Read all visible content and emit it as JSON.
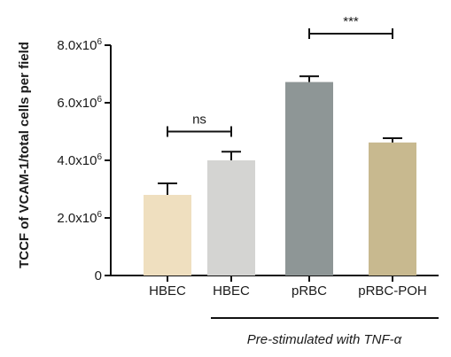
{
  "chart_data": {
    "type": "bar",
    "categories": [
      "HBEC",
      "HBEC",
      "pRBC",
      "pRBC-POH"
    ],
    "values": [
      2800000,
      4000000,
      6720000,
      4620000
    ],
    "errors": [
      400000,
      300000,
      200000,
      150000
    ],
    "colors": [
      "#efdfbf",
      "#d4d4d2",
      "#8e9696",
      "#c8b98f"
    ],
    "ylabel": "TCCF of VCAM-1/total cells per field",
    "ylim": [
      0,
      8000000
    ],
    "yticks": [
      {
        "value": 0,
        "label": "0"
      },
      {
        "value": 2000000,
        "label": "2.0x10",
        "exp": "6"
      },
      {
        "value": 4000000,
        "label": "4.0x10",
        "exp": "6"
      },
      {
        "value": 6000000,
        "label": "6.0x10",
        "exp": "6"
      },
      {
        "value": 8000000,
        "label": "8.0x10",
        "exp": "6"
      }
    ],
    "significance": [
      {
        "from": 0,
        "to": 1,
        "label": "ns",
        "level": 5000000
      },
      {
        "from": 2,
        "to": 3,
        "label": "***",
        "level": 8400000
      }
    ],
    "group_annotation": {
      "text_main": "Pre-stimulated with TNF-",
      "text_greek": "α",
      "span": [
        1,
        3
      ]
    },
    "grid": false,
    "legend": "none"
  }
}
